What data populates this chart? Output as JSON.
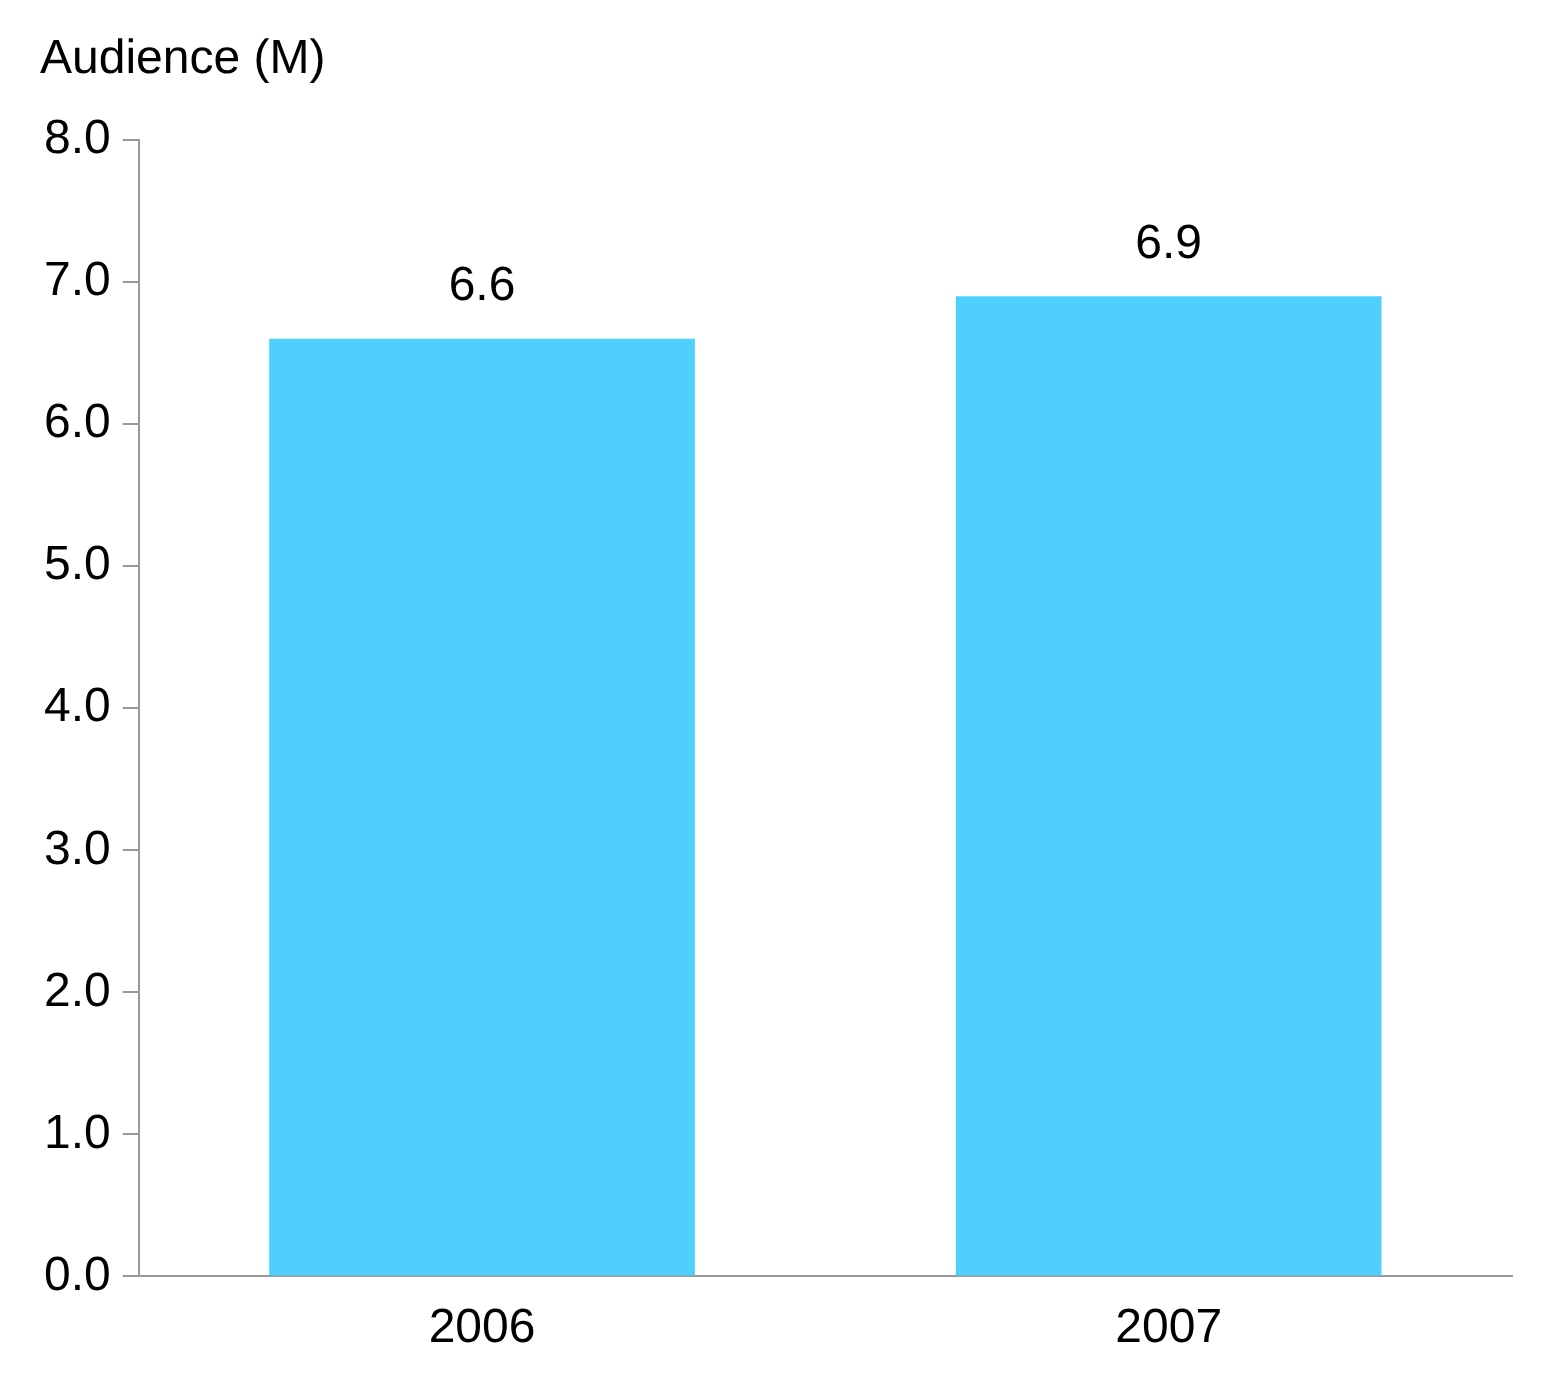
{
  "chart_data": {
    "type": "bar",
    "ylabel": "Audience (M)",
    "categories": [
      "2006",
      "2007"
    ],
    "values": [
      6.6,
      6.9
    ],
    "color": "#4fd0fc",
    "ylim": [
      0,
      8
    ],
    "yticks": [
      {
        "value": 0,
        "label": "0.0"
      },
      {
        "value": 1,
        "label": "1.0"
      },
      {
        "value": 2,
        "label": "2.0"
      },
      {
        "value": 3,
        "label": "3.0"
      },
      {
        "value": 4,
        "label": "4.0"
      },
      {
        "value": 5,
        "label": "5.0"
      },
      {
        "value": 6,
        "label": "6.0"
      },
      {
        "value": 7,
        "label": "7.0"
      },
      {
        "value": 8,
        "label": "8.0"
      }
    ],
    "data_labels": true,
    "grid": false,
    "legend": false
  }
}
